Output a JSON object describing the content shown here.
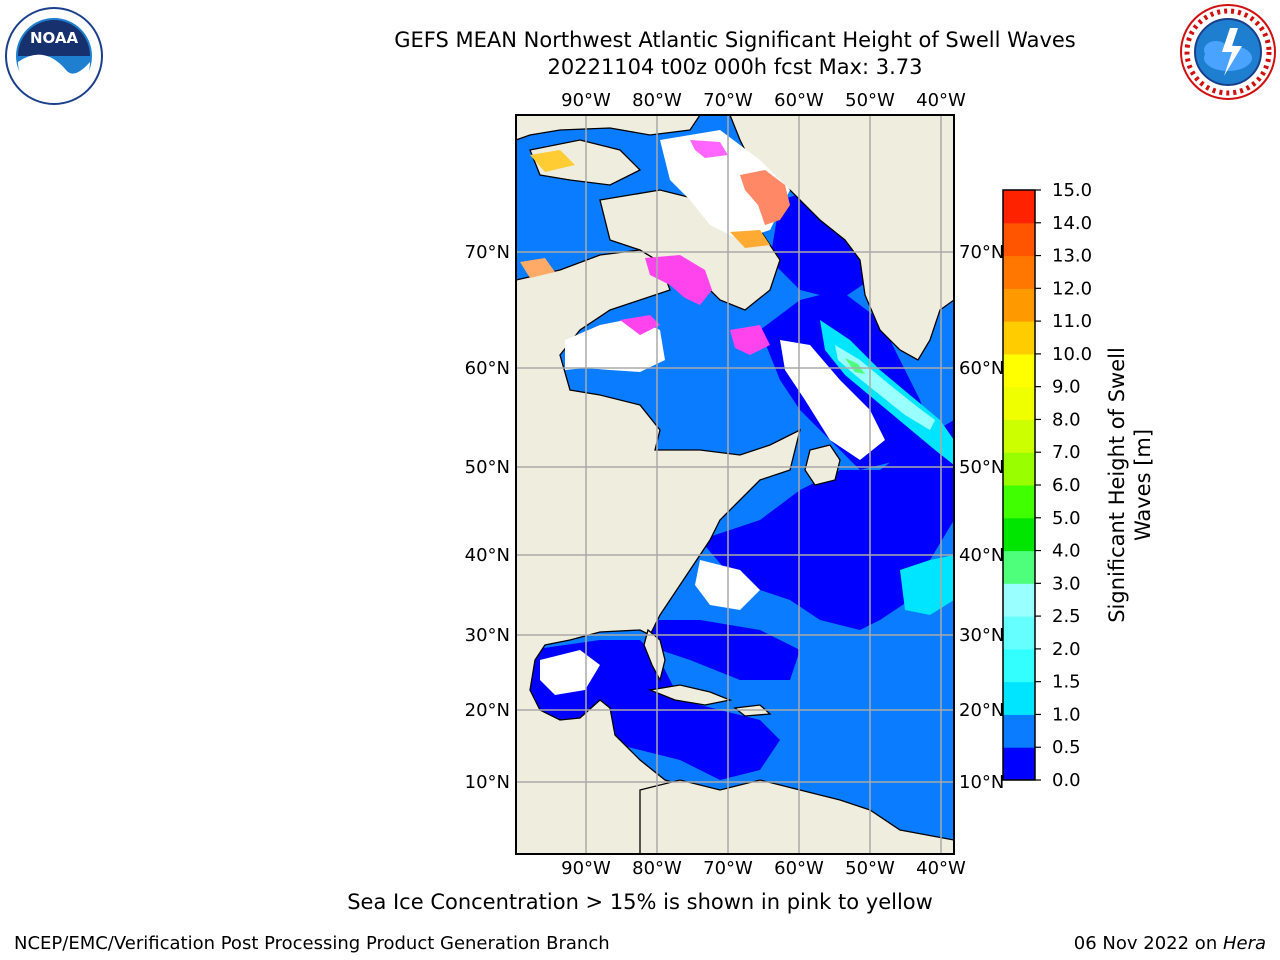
{
  "title": {
    "line1": "GEFS MEAN Northwest Atlantic Significant Height of Swell Waves",
    "line2": "20221104 t00z 000h fcst   Max: 3.73"
  },
  "map": {
    "lon_labels": [
      "90°W",
      "80°W",
      "70°W",
      "60°W",
      "50°W",
      "40°W"
    ],
    "lat_labels": [
      "70°N",
      "60°N",
      "50°N",
      "40°N",
      "30°N",
      "20°N",
      "10°N"
    ],
    "colors": {
      "land": "#efedde",
      "ocean_deep": "#0000ff",
      "ocean_mid": "#0a7cff",
      "grid": "#aaaaaa"
    }
  },
  "colorbar": {
    "label": "Significant Height of Swell Waves [m]",
    "ticks": [
      "0.0",
      "0.5",
      "1.0",
      "1.5",
      "2.0",
      "2.5",
      "3.0",
      "4.0",
      "5.0",
      "6.0",
      "7.0",
      "8.0",
      "9.0",
      "10.0",
      "11.0",
      "12.0",
      "13.0",
      "14.0",
      "15.0"
    ],
    "colors": [
      "#0000ff",
      "#0a7cff",
      "#00e5ff",
      "#33ffff",
      "#66ffff",
      "#99ffff",
      "#4dff7a",
      "#00e600",
      "#40ff00",
      "#99ff00",
      "#ccff00",
      "#f0ff00",
      "#ffff00",
      "#ffcc00",
      "#ff9900",
      "#ff7700",
      "#ff5500",
      "#ff2200"
    ]
  },
  "caption": "Sea Ice Concentration > 15% is shown in pink to yellow",
  "footer": {
    "branch": "NCEP/EMC/Verification Post Processing Product Generation Branch",
    "date": "06 Nov 2022 on ",
    "host": "Hera"
  }
}
